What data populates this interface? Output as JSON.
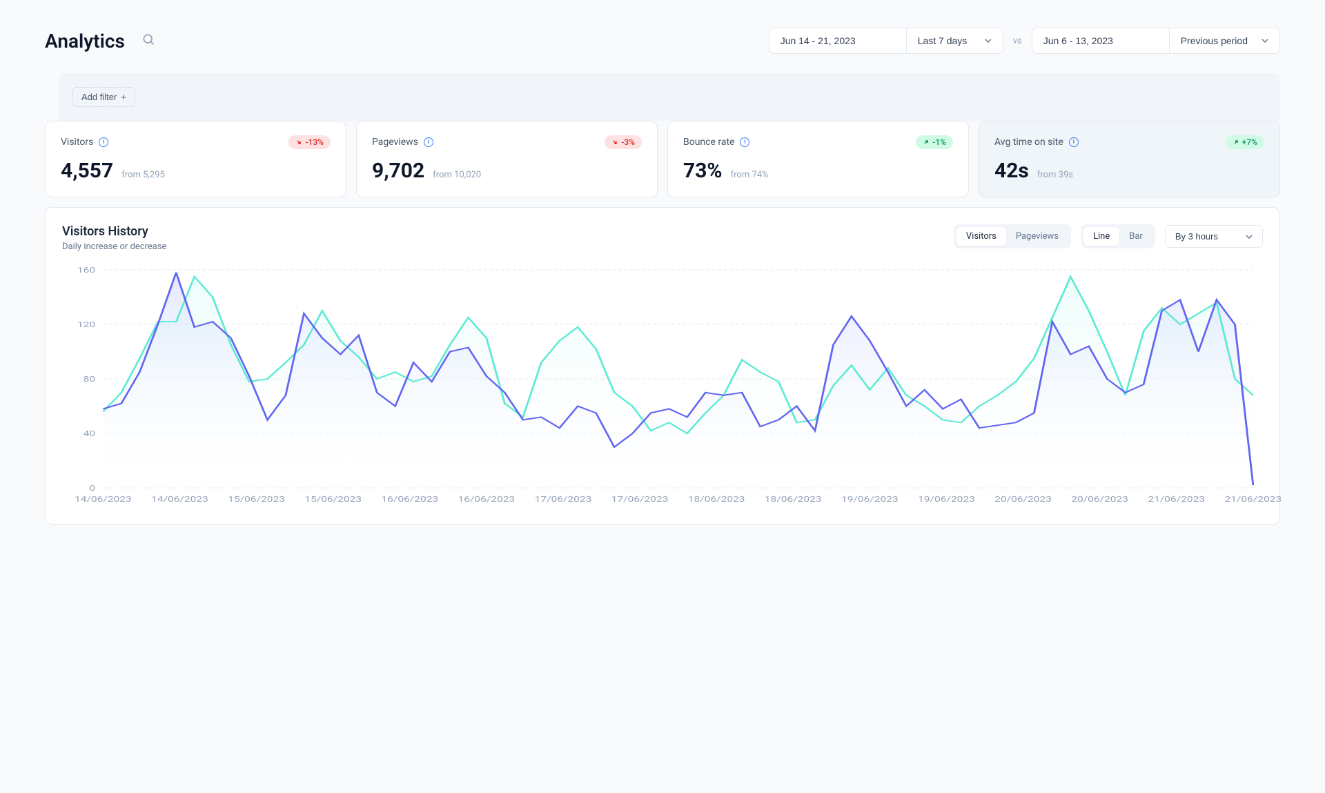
{
  "page": {
    "title": "Analytics"
  },
  "header": {
    "primary_range": "Jun 14 - 21, 2023",
    "primary_preset": "Last 7 days",
    "vs": "vs",
    "compare_range": "Jun 6 - 13, 2023",
    "compare_preset": "Previous period"
  },
  "filter": {
    "add_label": "Add filter"
  },
  "metrics": [
    {
      "title": "Visitors",
      "value": "4,557",
      "from": "from 5,295",
      "delta": "-13%",
      "direction": "down",
      "active": false
    },
    {
      "title": "Pageviews",
      "value": "9,702",
      "from": "from 10,020",
      "delta": "-3%",
      "direction": "down",
      "active": false
    },
    {
      "title": "Bounce rate",
      "value": "73%",
      "from": "from 74%",
      "delta": "-1%",
      "direction": "up",
      "active": false
    },
    {
      "title": "Avg time on site",
      "value": "42s",
      "from": "from 39s",
      "delta": "+7%",
      "direction": "up",
      "active": true
    }
  ],
  "chart": {
    "title": "Visitors History",
    "subtitle": "Daily increase or decrease",
    "seg1": {
      "options": [
        "Visitors",
        "Pageviews"
      ],
      "active": 0
    },
    "seg2": {
      "options": [
        "Line",
        "Bar"
      ],
      "active": 0
    },
    "interval": "By 3 hours",
    "type": "line",
    "y_axis": {
      "min": 0,
      "max": 160,
      "ticks": [
        0,
        40,
        80,
        120,
        160
      ]
    },
    "x_labels": [
      "14/06/2023",
      "14/06/2023",
      "15/06/2023",
      "15/06/2023",
      "16/06/2023",
      "16/06/2023",
      "17/06/2023",
      "17/06/2023",
      "18/06/2023",
      "18/06/2023",
      "19/06/2023",
      "19/06/2023",
      "20/06/2023",
      "20/06/2023",
      "21/06/2023",
      "21/06/2023"
    ],
    "series": [
      {
        "name": "primary",
        "stroke": "#6366f1",
        "fill_top": "#c7d2fe",
        "fill_bottom": "#ffffff",
        "fill_opacity": 0.5,
        "line_width": 2,
        "data": [
          58,
          62,
          85,
          120,
          158,
          118,
          122,
          110,
          82,
          50,
          68,
          128,
          110,
          98,
          112,
          70,
          60,
          92,
          78,
          100,
          103,
          82,
          70,
          50,
          52,
          44,
          60,
          55,
          30,
          40,
          55,
          58,
          52,
          70,
          68,
          70,
          45,
          50,
          60,
          42,
          105,
          126,
          108,
          85,
          60,
          72,
          58,
          65,
          44,
          46,
          48,
          55,
          122,
          98,
          104,
          80,
          70,
          76,
          130,
          138,
          100,
          138,
          120,
          2
        ]
      },
      {
        "name": "compare",
        "stroke": "#5eead4",
        "fill_top": "#ccfbf1",
        "fill_bottom": "#ffffff",
        "fill_opacity": 0.35,
        "line_width": 2,
        "data": [
          56,
          70,
          95,
          122,
          122,
          155,
          140,
          105,
          78,
          80,
          92,
          105,
          130,
          108,
          96,
          80,
          85,
          78,
          82,
          105,
          125,
          110,
          62,
          52,
          92,
          108,
          118,
          102,
          70,
          60,
          42,
          48,
          40,
          55,
          68,
          94,
          85,
          78,
          48,
          50,
          75,
          90,
          72,
          88,
          68,
          60,
          50,
          48,
          60,
          68,
          78,
          95,
          125,
          155,
          130,
          100,
          68,
          115,
          132,
          120,
          128,
          136,
          80,
          68
        ]
      }
    ],
    "colors": {
      "grid": "#e2e8f0",
      "axis_text": "#94a3b8",
      "bg": "#ffffff"
    }
  }
}
